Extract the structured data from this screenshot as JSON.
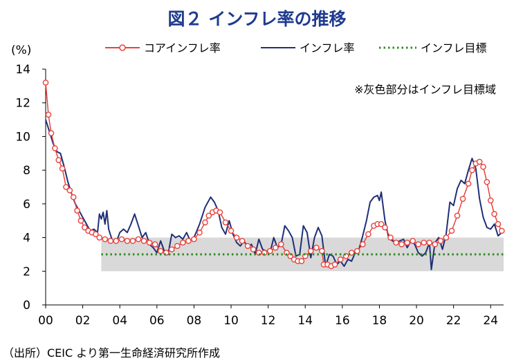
{
  "title": "図２ インフレ率の推移",
  "unit_label": "(%)",
  "source": "（出所）CEIC より第一生命経済研究所作成",
  "chart_data": {
    "type": "line",
    "title": "図２ インフレ率の推移",
    "ylabel": "(%)",
    "xlabel": "",
    "xlim": [
      2000.0,
      2024.7
    ],
    "ylim": [
      0,
      14
    ],
    "x_ticks": [
      2000,
      2002,
      2004,
      2006,
      2008,
      2010,
      2012,
      2014,
      2016,
      2018,
      2020,
      2022,
      2024
    ],
    "x_tick_labels": [
      "00",
      "02",
      "04",
      "06",
      "08",
      "10",
      "12",
      "14",
      "16",
      "18",
      "20",
      "22",
      "24"
    ],
    "y_ticks": [
      0,
      2,
      4,
      6,
      8,
      10,
      12,
      14
    ],
    "grid": false,
    "legend_position": "top",
    "annotation": "※灰色部分はインフレ目標域",
    "target_band": {
      "x_start": 2003.0,
      "x_end": 2024.7,
      "y_low": 2,
      "y_high": 4,
      "color": "#d9d9d9"
    },
    "series": [
      {
        "name": "コアインフレ率",
        "style": "line-marker",
        "color": "#e8413c",
        "x": [
          2000.0,
          2000.15,
          2000.3,
          2000.5,
          2000.7,
          2000.9,
          2001.1,
          2001.3,
          2001.5,
          2001.7,
          2001.9,
          2002.1,
          2002.3,
          2002.5,
          2002.7,
          2002.9,
          2003.2,
          2003.5,
          2003.8,
          2004.1,
          2004.4,
          2004.7,
          2005.0,
          2005.3,
          2005.6,
          2005.9,
          2006.2,
          2006.5,
          2006.8,
          2007.1,
          2007.4,
          2007.7,
          2008.0,
          2008.3,
          2008.6,
          2008.8,
          2009.0,
          2009.2,
          2009.4,
          2009.7,
          2010.0,
          2010.3,
          2010.6,
          2010.9,
          2011.2,
          2011.5,
          2011.8,
          2012.1,
          2012.4,
          2012.7,
          2013.0,
          2013.2,
          2013.4,
          2013.6,
          2013.8,
          2014.0,
          2014.3,
          2014.6,
          2014.9,
          2015.0,
          2015.2,
          2015.4,
          2015.6,
          2015.9,
          2016.2,
          2016.5,
          2016.8,
          2017.1,
          2017.4,
          2017.7,
          2017.9,
          2018.1,
          2018.3,
          2018.6,
          2018.9,
          2019.2,
          2019.5,
          2019.8,
          2020.1,
          2020.4,
          2020.7,
          2021.0,
          2021.3,
          2021.6,
          2021.9,
          2022.2,
          2022.5,
          2022.8,
          2023.0,
          2023.2,
          2023.4,
          2023.6,
          2023.8,
          2024.0,
          2024.2,
          2024.4,
          2024.6
        ],
        "values": [
          13.2,
          11.3,
          10.2,
          9.3,
          8.6,
          8.1,
          7.0,
          6.8,
          6.4,
          5.6,
          5.0,
          4.6,
          4.4,
          4.3,
          4.2,
          4.0,
          3.9,
          3.8,
          3.8,
          3.9,
          3.8,
          3.8,
          3.9,
          3.8,
          3.7,
          3.6,
          3.2,
          3.1,
          3.3,
          3.5,
          3.7,
          3.8,
          3.9,
          4.3,
          4.9,
          5.3,
          5.5,
          5.6,
          5.5,
          4.9,
          4.4,
          4.0,
          3.8,
          3.5,
          3.3,
          3.1,
          3.1,
          3.2,
          3.4,
          3.6,
          3.1,
          2.9,
          2.7,
          2.6,
          2.6,
          2.9,
          3.2,
          3.4,
          3.2,
          2.4,
          2.4,
          2.3,
          2.4,
          2.7,
          2.9,
          3.1,
          3.2,
          3.6,
          4.2,
          4.7,
          4.8,
          4.8,
          4.6,
          4.0,
          3.7,
          3.6,
          3.7,
          3.8,
          3.6,
          3.7,
          3.7,
          3.6,
          3.8,
          4.0,
          4.4,
          5.3,
          6.3,
          7.2,
          8.0,
          8.4,
          8.5,
          8.2,
          7.3,
          6.2,
          5.4,
          4.8,
          4.4
        ]
      },
      {
        "name": "インフレ率",
        "style": "line",
        "color": "#1f2f77",
        "x": [
          2000.0,
          2000.2,
          2000.4,
          2000.6,
          2000.8,
          2001.0,
          2001.2,
          2001.4,
          2001.6,
          2001.8,
          2002.0,
          2002.2,
          2002.4,
          2002.6,
          2002.8,
          2002.9,
          2003.0,
          2003.1,
          2003.2,
          2003.3,
          2003.4,
          2003.6,
          2003.8,
          2004.0,
          2004.2,
          2004.4,
          2004.6,
          2004.8,
          2005.0,
          2005.2,
          2005.4,
          2005.6,
          2005.8,
          2006.0,
          2006.2,
          2006.4,
          2006.6,
          2006.8,
          2007.0,
          2007.2,
          2007.4,
          2007.6,
          2007.8,
          2008.0,
          2008.3,
          2008.6,
          2008.9,
          2009.1,
          2009.3,
          2009.5,
          2009.7,
          2009.9,
          2010.1,
          2010.3,
          2010.5,
          2010.7,
          2010.9,
          2011.1,
          2011.3,
          2011.5,
          2011.7,
          2011.9,
          2012.1,
          2012.3,
          2012.5,
          2012.7,
          2012.9,
          2013.1,
          2013.3,
          2013.5,
          2013.7,
          2013.9,
          2014.1,
          2014.3,
          2014.5,
          2014.7,
          2014.9,
          2015.1,
          2015.3,
          2015.5,
          2015.7,
          2015.9,
          2016.1,
          2016.3,
          2016.5,
          2016.7,
          2016.9,
          2017.1,
          2017.3,
          2017.5,
          2017.7,
          2017.9,
          2018.0,
          2018.1,
          2018.3,
          2018.5,
          2018.7,
          2018.9,
          2019.1,
          2019.3,
          2019.5,
          2019.7,
          2019.9,
          2020.1,
          2020.3,
          2020.5,
          2020.7,
          2020.8,
          2021.0,
          2021.2,
          2021.4,
          2021.6,
          2021.8,
          2022.0,
          2022.2,
          2022.4,
          2022.6,
          2022.8,
          2023.0,
          2023.2,
          2023.4,
          2023.6,
          2023.8,
          2024.0,
          2024.2,
          2024.4,
          2024.6
        ],
        "values": [
          11.0,
          10.3,
          9.6,
          9.1,
          9.0,
          8.2,
          7.3,
          6.6,
          6.0,
          5.6,
          5.2,
          4.8,
          4.4,
          4.5,
          4.3,
          5.4,
          5.1,
          5.5,
          4.8,
          5.6,
          4.5,
          3.8,
          3.7,
          4.3,
          4.5,
          4.3,
          4.8,
          5.4,
          4.7,
          4.0,
          4.3,
          3.6,
          3.4,
          3.1,
          3.8,
          3.2,
          3.0,
          4.2,
          4.0,
          4.1,
          3.9,
          4.3,
          3.8,
          4.0,
          4.8,
          5.8,
          6.4,
          6.1,
          5.6,
          4.6,
          4.2,
          5.0,
          4.2,
          3.7,
          3.5,
          3.8,
          3.4,
          3.6,
          3.0,
          3.9,
          3.3,
          3.2,
          3.1,
          4.0,
          3.4,
          3.6,
          4.7,
          4.4,
          4.0,
          2.9,
          3.0,
          4.7,
          4.3,
          2.8,
          4.0,
          4.6,
          4.1,
          2.3,
          3.0,
          2.9,
          2.4,
          2.6,
          2.3,
          2.7,
          2.6,
          3.1,
          3.3,
          4.1,
          5.0,
          6.1,
          6.4,
          6.5,
          6.2,
          6.7,
          5.0,
          4.0,
          3.8,
          3.7,
          3.8,
          3.9,
          3.4,
          3.8,
          3.6,
          3.1,
          2.9,
          3.1,
          3.7,
          2.1,
          3.7,
          4.0,
          3.3,
          4.2,
          6.1,
          5.9,
          6.9,
          7.4,
          7.2,
          8.0,
          8.7,
          8.1,
          6.3,
          5.2,
          4.6,
          4.5,
          4.8,
          4.1,
          4.3
        ]
      },
      {
        "name": "インフレ目標",
        "style": "dotted",
        "color": "#2e8b22",
        "x": [
          2003.0,
          2024.7
        ],
        "values": [
          3.0,
          3.0
        ]
      }
    ]
  }
}
